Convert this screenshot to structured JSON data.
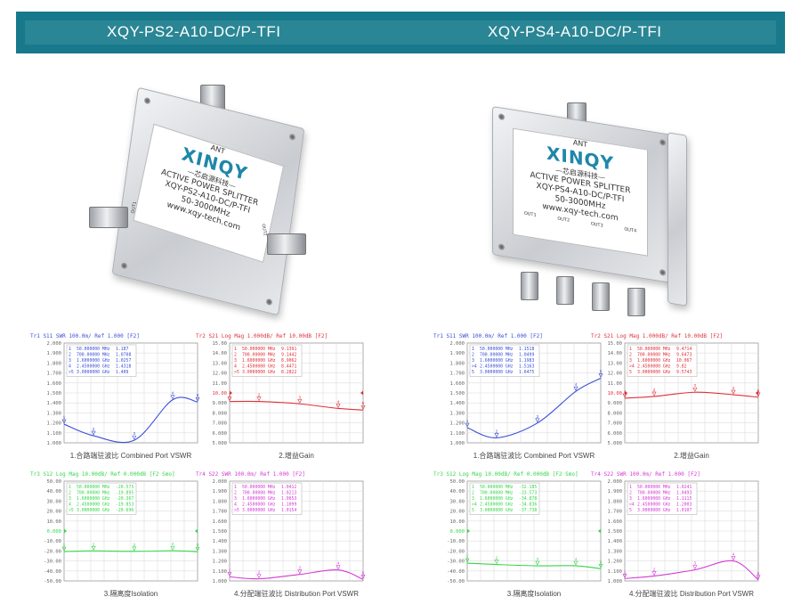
{
  "header": {
    "left_title": "XQY-PS2-A10-DC/P-TFI",
    "right_title": "XQY-PS4-A10-DC/P-TFI",
    "band_color": "#17798b"
  },
  "products": [
    {
      "brand": "XINQY",
      "brand_cn": "—芯启源科技—",
      "type": "ACTIVE POWER SPLITTER",
      "model": "XQY-PS2-A10-DC/P-TFI",
      "range": "50-3000MHz",
      "web": "www.xqy-tech.com",
      "port_in": "ANT",
      "ports_out": [
        "OUT1",
        "OUT2"
      ]
    },
    {
      "brand": "XINQY",
      "brand_cn": "—芯启源科技—",
      "type": "ACTIVE POWER SPLITTER",
      "model": "XQY-PS4-A10-DC/P-TFI",
      "range": "50-3000MHz",
      "web": "www.xqy-tech.com",
      "port_in": "ANT",
      "ports_out": [
        "OUT1",
        "OUT2",
        "OUT3",
        "OUT4"
      ]
    }
  ],
  "chart_data": [
    {
      "type": "line",
      "header": "Tr1 S11 SWR 100.0m/ Ref 1.000 [F2]",
      "caption": "1.合路端驻波比 Combined Port VSWR",
      "color": "#3b4fd6",
      "ylim": [
        1.0,
        2.0
      ],
      "yticks": [
        "2.000",
        "1.900",
        "1.800",
        "1.700",
        "1.600",
        "1.500",
        "1.400",
        "1.300",
        "1.200",
        "1.100",
        "1.000"
      ],
      "xlim_mhz": [
        50,
        3000
      ],
      "markers": [
        {
          "n": "1",
          "f": "50.000000 MHz",
          "x": 50,
          "y": 1.187
        },
        {
          "n": "2",
          "f": "700.00000 MHz",
          "x": 700,
          "y": 1.0708
        },
        {
          "n": "3",
          "f": "1.6000000 GHz",
          "x": 1600,
          "y": 1.0257
        },
        {
          "n": "4",
          "f": "2.4500000 GHz",
          "x": 2450,
          "y": 1.4318
        },
        {
          "n": ">5",
          "f": "3.0000000 GHz",
          "x": 3000,
          "y": 1.409
        }
      ]
    },
    {
      "type": "line",
      "header": "Tr2 S21 Log Mag 1.000dB/ Ref 10.00dB [F2]",
      "caption": "2.增益Gain",
      "color": "#e0303a",
      "ylim": [
        5,
        15
      ],
      "ref": "10.00",
      "yticks": [
        "15.00",
        "14.00",
        "13.00",
        "12.00",
        "11.00",
        "10.00",
        "9.000",
        "8.000",
        "7.000",
        "6.000",
        "5.000"
      ],
      "xlim_mhz": [
        50,
        3000
      ],
      "markers": [
        {
          "n": "1",
          "f": "50.000000 MHz",
          "x": 50,
          "y": 9.1391
        },
        {
          "n": "2",
          "f": "700.00000 MHz",
          "x": 700,
          "y": 9.1442
        },
        {
          "n": "3",
          "f": "1.6000000 GHz",
          "x": 1600,
          "y": 8.9062
        },
        {
          "n": "4",
          "f": "2.4500000 GHz",
          "x": 2450,
          "y": 8.4471
        },
        {
          "n": ">5",
          "f": "3.0000000 GHz",
          "x": 3000,
          "y": 8.2822
        }
      ]
    },
    {
      "type": "line",
      "header": "Tr3 S12 Log Mag 10.00dB/ Ref 0.000dB [F2 Smo]",
      "caption": "3.隔离度Isolation",
      "color": "#36d64a",
      "ylim": [
        -50,
        50
      ],
      "ref": "0.000",
      "yticks": [
        "50.00",
        "40.00",
        "30.00",
        "20.00",
        "10.00",
        "0.000",
        "-10.00",
        "-20.00",
        "-30.00",
        "-40.00",
        "-50.00"
      ],
      "xlim_mhz": [
        50,
        3000
      ],
      "markers": [
        {
          "n": "1",
          "f": "50.000000 MHz",
          "x": 50,
          "y": -20.573
        },
        {
          "n": "2",
          "f": "700.00000 MHz",
          "x": 700,
          "y": -19.895
        },
        {
          "n": "3",
          "f": "1.6000000 GHz",
          "x": 1600,
          "y": -20.367
        },
        {
          "n": "4",
          "f": "2.4500000 GHz",
          "x": 2450,
          "y": -19.853
        },
        {
          "n": ">5",
          "f": "3.0000000 GHz",
          "x": 3000,
          "y": -20.696
        }
      ]
    },
    {
      "type": "line",
      "header": "Tr4 S22 SWR 100.0m/ Ref 1.000 [F2]",
      "caption": "4.分配端驻波比 Distribution Port VSWR",
      "color": "#d43ad4",
      "ylim": [
        1.0,
        2.0
      ],
      "yticks": [
        "2.000",
        "1.900",
        "1.800",
        "1.700",
        "1.600",
        "1.500",
        "1.400",
        "1.300",
        "1.200",
        "1.100",
        "1.000"
      ],
      "xlim_mhz": [
        50,
        3000
      ],
      "markers": [
        {
          "n": "1",
          "f": "50.000000 MHz",
          "x": 50,
          "y": 1.0412
        },
        {
          "n": "2",
          "f": "700.00000 MHz",
          "x": 700,
          "y": 1.0213
        },
        {
          "n": "3",
          "f": "1.6000000 GHz",
          "x": 1600,
          "y": 1.0653
        },
        {
          "n": "4",
          "f": "2.4500000 GHz",
          "x": 2450,
          "y": 1.1099
        },
        {
          "n": ">5",
          "f": "3.0000000 GHz",
          "x": 3000,
          "y": 1.0154
        }
      ]
    },
    {
      "type": "line",
      "header": "Tr1 S11 SWR 100.0m/ Ref 1.000 [F2]",
      "caption": "1.合路端驻波比 Combined Port VSWR",
      "color": "#3b4fd6",
      "ylim": [
        1.0,
        2.0
      ],
      "yticks": [
        "2.000",
        "1.900",
        "1.800",
        "1.700",
        "1.600",
        "1.500",
        "1.400",
        "1.300",
        "1.200",
        "1.100",
        "1.000"
      ],
      "xlim_mhz": [
        50,
        3000
      ],
      "markers": [
        {
          "n": "1",
          "f": "50.000000 MHz",
          "x": 50,
          "y": 1.1518
        },
        {
          "n": "2",
          "f": "700.00000 MHz",
          "x": 700,
          "y": 1.0499
        },
        {
          "n": "3",
          "f": "1.6000000 GHz",
          "x": 1600,
          "y": 1.1983
        },
        {
          "n": ">4",
          "f": "2.4500000 GHz",
          "x": 2450,
          "y": 1.5163
        },
        {
          "n": "5",
          "f": "3.0000000 GHz",
          "x": 3000,
          "y": 1.6475
        }
      ]
    },
    {
      "type": "line",
      "header": "Tr2 S21 Log Mag 1.000dB/ Ref 10.00dB [F2]",
      "caption": "2.增益Gain",
      "color": "#e0303a",
      "ylim": [
        5,
        15
      ],
      "ref": "10.00",
      "yticks": [
        "15.00",
        "14.00",
        "13.00",
        "12.00",
        "11.00",
        "10.00",
        "9.000",
        "8.000",
        "7.000",
        "6.000",
        "5.000"
      ],
      "xlim_mhz": [
        50,
        3000
      ],
      "markers": [
        {
          "n": "1",
          "f": "50.000000 MHz",
          "x": 50,
          "y": 9.4714
        },
        {
          "n": "2",
          "f": "700.00000 MHz",
          "x": 700,
          "y": 9.6473
        },
        {
          "n": "3",
          "f": "1.6000000 GHz",
          "x": 1600,
          "y": 10.067
        },
        {
          "n": ">4",
          "f": "2.4500000 GHz",
          "x": 2450,
          "y": 9.82
        },
        {
          "n": "5",
          "f": "3.0000000 GHz",
          "x": 3000,
          "y": 9.5743
        }
      ]
    },
    {
      "type": "line",
      "header": "Tr3 S12 Log Mag 10.00dB/ Ref 0.000dB [F2 Smo]",
      "caption": "3.隔离度Isolation",
      "color": "#36d64a",
      "ylim": [
        -50,
        50
      ],
      "ref": "0.000",
      "yticks": [
        "50.00",
        "40.00",
        "30.00",
        "20.00",
        "10.00",
        "0.000",
        "-10.00",
        "-20.00",
        "-30.00",
        "-40.00",
        "-50.00"
      ],
      "xlim_mhz": [
        50,
        3000
      ],
      "markers": [
        {
          "n": "1",
          "f": "50.000000 MHz",
          "x": 50,
          "y": -32.185
        },
        {
          "n": "2",
          "f": "700.00000 MHz",
          "x": 700,
          "y": -33.573
        },
        {
          "n": "3",
          "f": "1.6000000 GHz",
          "x": 1600,
          "y": -34.878
        },
        {
          "n": ">4",
          "f": "2.4500000 GHz",
          "x": 2450,
          "y": -34.836
        },
        {
          "n": "5",
          "f": "3.0000000 GHz",
          "x": 3000,
          "y": -37.738
        }
      ]
    },
    {
      "type": "line",
      "header": "Tr4 S22 SWR 100.0m/ Ref 1.000 [F2]",
      "caption": "4.分配端驻波比 Distribution Port VSWR",
      "color": "#d43ad4",
      "ylim": [
        1.0,
        2.0
      ],
      "yticks": [
        "2.000",
        "1.900",
        "1.800",
        "1.700",
        "1.600",
        "1.500",
        "1.400",
        "1.300",
        "1.200",
        "1.100",
        "1.000"
      ],
      "xlim_mhz": [
        50,
        3000
      ],
      "markers": [
        {
          "n": "1",
          "f": "50.000000 MHz",
          "x": 50,
          "y": 1.0241
        },
        {
          "n": "2",
          "f": "700.00000 MHz",
          "x": 700,
          "y": 1.0493
        },
        {
          "n": "3",
          "f": "1.6000000 GHz",
          "x": 1600,
          "y": 1.1115
        },
        {
          "n": ">4",
          "f": "2.4500000 GHz",
          "x": 2450,
          "y": 1.2003
        },
        {
          "n": "5",
          "f": "3.0000000 GHz",
          "x": 3000,
          "y": 1.0107
        }
      ]
    }
  ]
}
